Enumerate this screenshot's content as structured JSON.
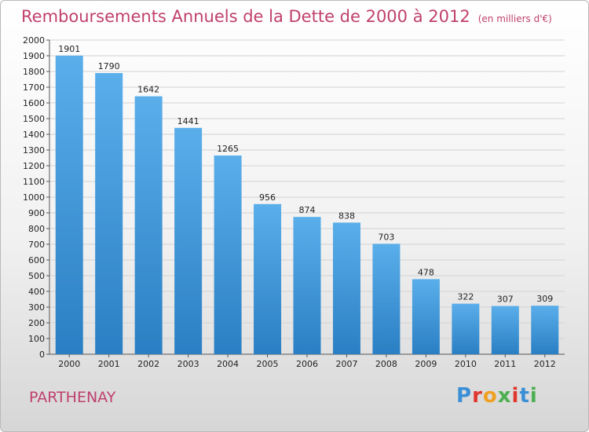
{
  "title": "Remboursements Annuels de la Dette de 2000 à 2012",
  "unit": "(en milliers d'€)",
  "place": "PARTHENAY",
  "logo": "Proxiti",
  "colors": {
    "title": "#c0406e",
    "bar_top": "#5aaeea",
    "bar_bottom": "#2a7fc4"
  },
  "chart_data": {
    "type": "bar",
    "title": "Remboursements Annuels de la Dette de 2000 à 2012",
    "xlabel": "",
    "ylabel": "",
    "ylim": [
      0,
      2000
    ],
    "yticks": [
      0,
      100,
      200,
      300,
      400,
      500,
      600,
      700,
      800,
      900,
      1000,
      1100,
      1200,
      1300,
      1400,
      1500,
      1600,
      1700,
      1800,
      1900,
      2000
    ],
    "grid": true,
    "categories": [
      "2000",
      "2001",
      "2002",
      "2003",
      "2004",
      "2005",
      "2006",
      "2007",
      "2008",
      "2009",
      "2010",
      "2011",
      "2012"
    ],
    "values": [
      1901,
      1790,
      1642,
      1441,
      1265,
      956,
      874,
      838,
      703,
      478,
      322,
      307,
      309
    ]
  }
}
